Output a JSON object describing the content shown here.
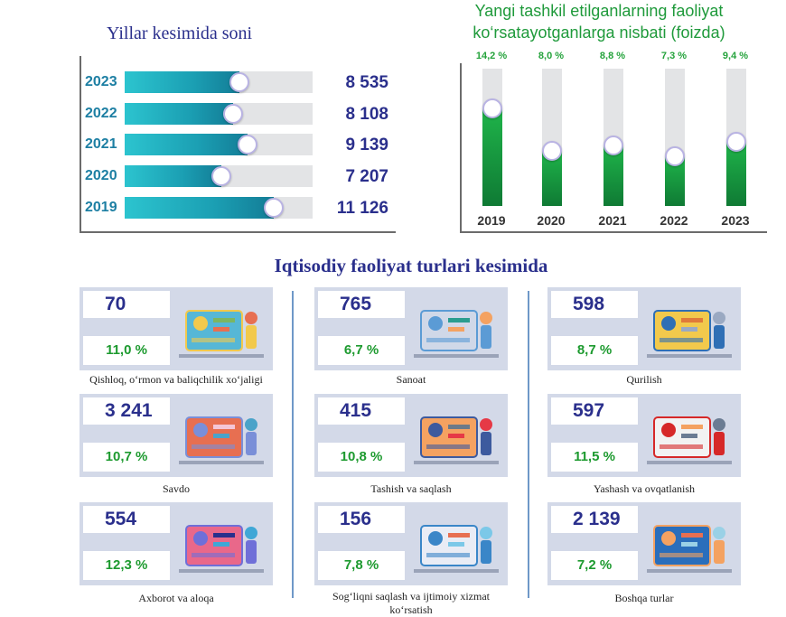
{
  "left_chart": {
    "title": "Yillar kesimida soni",
    "chart_data": {
      "type": "bar",
      "orientation": "horizontal",
      "categories": [
        "2023",
        "2022",
        "2021",
        "2020",
        "2019"
      ],
      "values": [
        8535,
        8108,
        9139,
        7207,
        11126
      ],
      "value_labels": [
        "8 535",
        "8 108",
        "9 139",
        "7 207",
        "11 126"
      ],
      "xlim": [
        0,
        14000
      ],
      "colors": {
        "fill": "#1b9fb3",
        "track": "#e3e4e6",
        "label": "#2a2f8c",
        "year": "#1d7fa3"
      }
    }
  },
  "right_chart": {
    "title": "Yangi tashkil etilganlarning faoliyat ko‘rsatayotganlarga nisbati (foizda)",
    "chart_data": {
      "type": "bar",
      "orientation": "vertical",
      "categories": [
        "2019",
        "2020",
        "2021",
        "2022",
        "2023"
      ],
      "values": [
        14.2,
        8.0,
        8.8,
        7.3,
        9.4
      ],
      "value_labels": [
        "14,2 %",
        "8,0 %",
        "8,8 %",
        "7,3 %",
        "9,4 %"
      ],
      "ylim": [
        0,
        20
      ],
      "colors": {
        "fill": "#1fb44a",
        "track": "#e3e4e6",
        "label": "#25a33c"
      }
    }
  },
  "section_title": "Iqtisodiy faoliyat turlari kesimida",
  "cards": [
    {
      "count": "70",
      "pct": "11,0 %",
      "label": "Qishloq, o‘rmon va baliqchilik xo‘jaligi",
      "icon": "agriculture-icon"
    },
    {
      "count": "765",
      "pct": "6,7 %",
      "label": "Sanoat",
      "icon": "industry-icon"
    },
    {
      "count": "598",
      "pct": "8,7 %",
      "label": "Qurilish",
      "icon": "construction-icon"
    },
    {
      "count": "3 241",
      "pct": "10,7 %",
      "label": "Savdo",
      "icon": "shopping-icon"
    },
    {
      "count": "415",
      "pct": "10,8 %",
      "label": "Tashish va saqlash",
      "icon": "delivery-truck-icon"
    },
    {
      "count": "597",
      "pct": "11,5 %",
      "label": "Yashash va ovqatlanish",
      "icon": "hotel-service-icon"
    },
    {
      "count": "554",
      "pct": "12,3 %",
      "label": "Axborot va aloqa",
      "icon": "it-gears-icon"
    },
    {
      "count": "156",
      "pct": "7,8 %",
      "label": "Sog‘liqni saqlash va ijtimoiy xizmat ko‘rsatish",
      "icon": "healthcare-icon"
    },
    {
      "count": "2 139",
      "pct": "7,2 %",
      "label": "Boshqa turlar",
      "icon": "analytics-icon"
    }
  ]
}
